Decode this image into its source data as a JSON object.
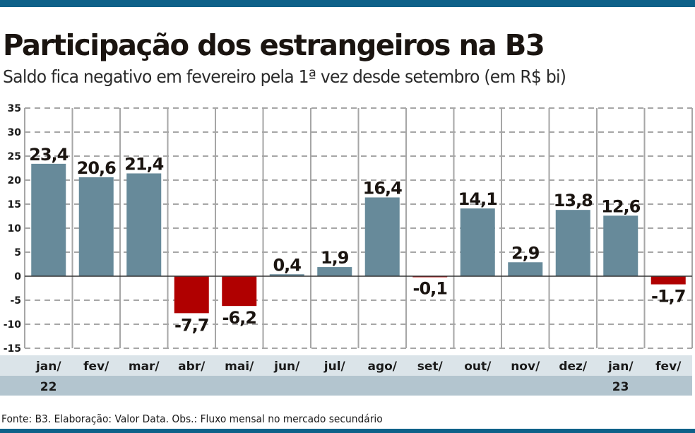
{
  "header": {
    "title": "Participação dos estrangeiros na B3",
    "subtitle": "Saldo fica negativo em fevereiro pela 1ª vez desde setembro (em R$ bi)"
  },
  "footer": {
    "source": "Fonte: B3. Elaboração: Valor Data. Obs.: Fluxo mensal no mercado secundário"
  },
  "colors": {
    "accent_bar": "#0e6189",
    "positive": "#678a9a",
    "negative": "#b00000",
    "grid": "#a6a6a6",
    "xband_top": "#dbe4e9",
    "xband_bottom": "#b3c5cf"
  },
  "chart_data": {
    "type": "bar",
    "title": "Participação dos estrangeiros na B3",
    "subtitle": "Saldo fica negativo em fevereiro pela 1ª vez desde setembro (em R$ bi)",
    "xlabel": "",
    "ylabel": "",
    "categories": [
      "jan/",
      "fev/",
      "mar/",
      "abr/",
      "mai/",
      "jun/",
      "jul/",
      "ago/",
      "set/",
      "out/",
      "nov/",
      "dez/",
      "jan/",
      "fev/"
    ],
    "year_labels": [
      "22",
      "",
      "",
      "",
      "",
      "",
      "",
      "",
      "",
      "",
      "",
      "",
      "23",
      ""
    ],
    "values": [
      23.4,
      20.6,
      21.4,
      -7.7,
      -6.2,
      0.4,
      1.9,
      16.4,
      -0.1,
      14.1,
      2.9,
      13.8,
      12.6,
      -1.7
    ],
    "value_labels": [
      "23,4",
      "20,6",
      "21,4",
      "-7,7",
      "-6,2",
      "0,4",
      "1,9",
      "16,4",
      "-0,1",
      "14,1",
      "2,9",
      "13,8",
      "12,6",
      "-1,7"
    ],
    "ylim": [
      -15,
      35
    ],
    "yticks": [
      35,
      30,
      25,
      20,
      15,
      10,
      5,
      0,
      -5,
      -10,
      -15
    ],
    "ytick_labels": [
      "35",
      "30",
      "25",
      "20",
      "15",
      "10",
      "5",
      "0",
      "-5",
      "-10",
      "-15"
    ],
    "grid": true,
    "legend": "none"
  }
}
